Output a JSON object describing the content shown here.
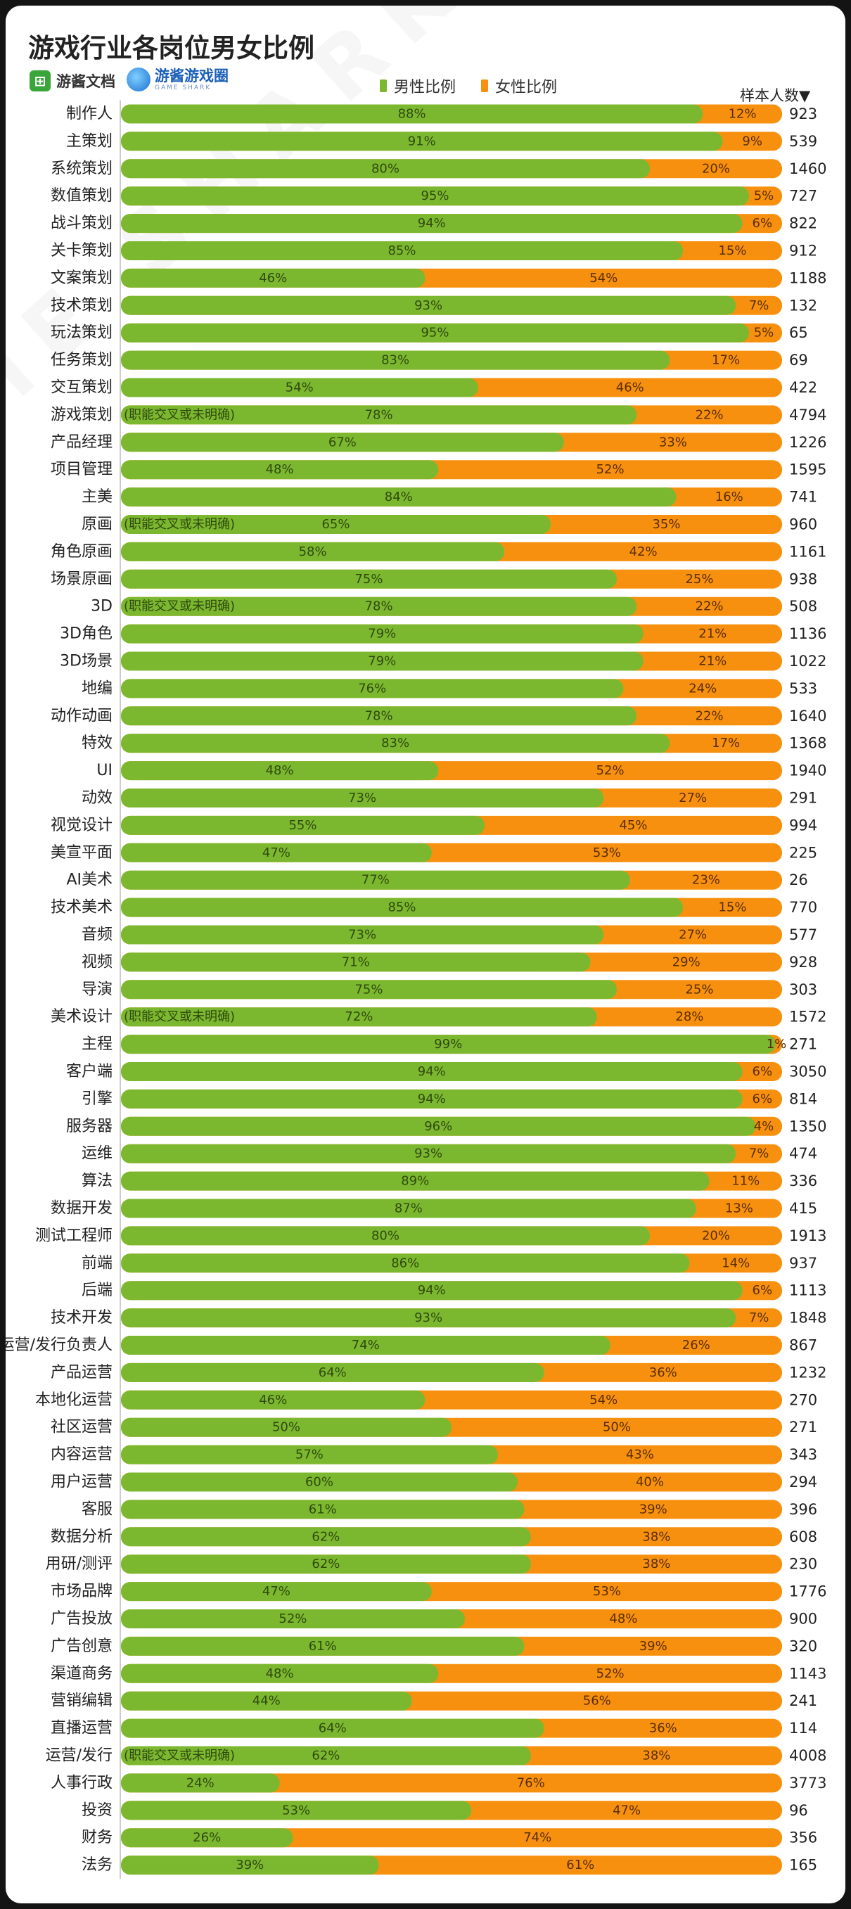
{
  "header": {
    "title": "游戏行业各岗位男女比例",
    "logo1_icon": "sheet-icon",
    "logo1_text": "游酱文档",
    "logo2_icon": "globe-icon",
    "logo2_text": "游酱游戏圈",
    "logo2_sub": "GAME SHARK"
  },
  "watermark": {
    "text": "GAME SHARK"
  },
  "colors": {
    "male": "#7cb82f",
    "female": "#f7900f",
    "background": "#ffffff"
  },
  "chart_data": {
    "type": "bar",
    "orientation": "horizontal-stacked-100",
    "title": "游戏行业各岗位男女比例",
    "legend": [
      "男性比例",
      "女性比例"
    ],
    "sample_header": "样本人数▼",
    "note_text": "(职能交叉或未明确)",
    "categories": [
      "制作人",
      "主策划",
      "系统策划",
      "数值策划",
      "战斗策划",
      "关卡策划",
      "文案策划",
      "技术策划",
      "玩法策划",
      "任务策划",
      "交互策划",
      "游戏策划",
      "产品经理",
      "项目管理",
      "主美",
      "原画",
      "角色原画",
      "场景原画",
      "3D",
      "3D角色",
      "3D场景",
      "地编",
      "动作动画",
      "特效",
      "UI",
      "动效",
      "视觉设计",
      "美宣平面",
      "AI美术",
      "技术美术",
      "音频",
      "视频",
      "导演",
      "美术设计",
      "主程",
      "客户端",
      "引擎",
      "服务器",
      "运维",
      "算法",
      "数据开发",
      "测试工程师",
      "前端",
      "后端",
      "技术开发",
      "运营/发行负责人",
      "产品运营",
      "本地化运营",
      "社区运营",
      "内容运营",
      "用户运营",
      "客服",
      "数据分析",
      "用研/测评",
      "市场品牌",
      "广告投放",
      "广告创意",
      "渠道商务",
      "营销编辑",
      "直播运营",
      "运营/发行",
      "人事行政",
      "投资",
      "财务",
      "法务"
    ],
    "series": [
      {
        "name": "男性比例",
        "values": [
          88,
          91,
          80,
          95,
          94,
          85,
          46,
          93,
          95,
          83,
          54,
          78,
          67,
          48,
          84,
          65,
          58,
          75,
          78,
          79,
          79,
          76,
          78,
          83,
          48,
          73,
          55,
          47,
          77,
          85,
          73,
          71,
          75,
          72,
          99,
          94,
          94,
          96,
          93,
          89,
          87,
          80,
          86,
          94,
          93,
          74,
          64,
          46,
          50,
          57,
          60,
          61,
          62,
          62,
          47,
          52,
          61,
          48,
          44,
          64,
          62,
          24,
          53,
          26,
          39
        ]
      },
      {
        "name": "女性比例",
        "values": [
          12,
          9,
          20,
          5,
          6,
          15,
          54,
          7,
          5,
          17,
          46,
          22,
          33,
          52,
          16,
          35,
          42,
          25,
          22,
          21,
          21,
          24,
          22,
          17,
          52,
          27,
          45,
          53,
          23,
          15,
          27,
          29,
          25,
          28,
          1,
          6,
          6,
          4,
          7,
          11,
          13,
          20,
          14,
          6,
          7,
          26,
          36,
          54,
          50,
          43,
          40,
          39,
          38,
          38,
          53,
          48,
          39,
          52,
          56,
          36,
          38,
          76,
          47,
          74,
          61
        ]
      }
    ],
    "sample_sizes": [
      923,
      539,
      1460,
      727,
      822,
      912,
      1188,
      132,
      65,
      69,
      422,
      4794,
      1226,
      1595,
      741,
      960,
      1161,
      938,
      508,
      1136,
      1022,
      533,
      1640,
      1368,
      1940,
      291,
      994,
      225,
      26,
      770,
      577,
      928,
      303,
      1572,
      271,
      3050,
      814,
      1350,
      474,
      336,
      415,
      1913,
      937,
      1113,
      1848,
      867,
      1232,
      270,
      271,
      343,
      294,
      396,
      608,
      230,
      1776,
      900,
      320,
      1143,
      241,
      114,
      4008,
      3773,
      96,
      356,
      165
    ],
    "note_rows": [
      11,
      15,
      18,
      33,
      60
    ],
    "xlim": [
      0,
      100
    ],
    "unit": "%"
  }
}
